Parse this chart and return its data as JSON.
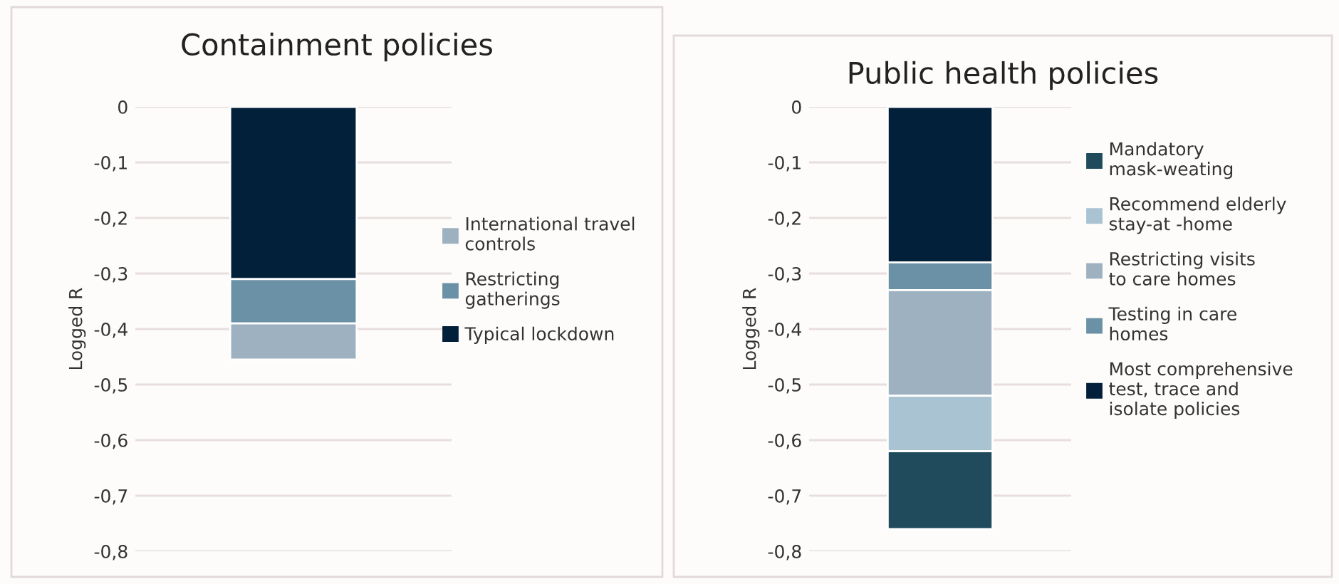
{
  "chart_data": [
    {
      "type": "bar",
      "stacked": true,
      "title": "Containment policies",
      "ylabel": "Logged R",
      "categories": [
        null
      ],
      "series": [
        {
          "name": "Typical lockdown",
          "color": "#03203a",
          "values": [
            -0.31
          ]
        },
        {
          "name": "Restricting gatherings",
          "color": "#6a91a5",
          "values": [
            -0.08
          ]
        },
        {
          "name": "International travel controls",
          "color": "#9db1c0",
          "values": [
            -0.065
          ]
        }
      ],
      "ylim": [
        -0.8,
        0
      ],
      "yticks": [
        0,
        {
          "value": -0.1,
          "label": "-0,1"
        },
        {
          "value": -0.2,
          "label": "-0,2"
        },
        {
          "value": -0.3,
          "label": "-0,3"
        },
        {
          "value": -0.4,
          "label": "-0,4"
        },
        {
          "value": -0.5,
          "label": "-0,5"
        },
        {
          "value": -0.6,
          "label": "-0,6"
        },
        {
          "value": -0.7,
          "label": "-0,7"
        },
        {
          "value": -0.8,
          "label": "-0,8"
        }
      ],
      "grid": "y",
      "legend": "right",
      "tick_labels": "y"
    },
    {
      "type": "bar",
      "stacked": true,
      "title": "Public health policies",
      "ylabel": "Logged R",
      "categories": [
        null
      ],
      "series": [
        {
          "name": "Most comprehensive test, trace and isolate policies",
          "color": "#03203a",
          "values": [
            -0.28
          ]
        },
        {
          "name": "Testing in care homes",
          "color": "#6a91a5",
          "values": [
            -0.05
          ]
        },
        {
          "name": "Restricting visits to care homes",
          "color": "#9db1c0",
          "values": [
            -0.19
          ]
        },
        {
          "name": "Recommend elderly stay-at -home",
          "color": "#a9c3d3",
          "values": [
            -0.1
          ]
        },
        {
          "name": "Mandatory mask-weating",
          "color": "#1f4b5c",
          "values": [
            -0.14
          ]
        }
      ],
      "ylim": [
        -0.8,
        0
      ],
      "yticks": [
        0,
        {
          "value": -0.1,
          "label": "-0,1"
        },
        {
          "value": -0.2,
          "label": "-0,2"
        },
        {
          "value": -0.3,
          "label": "-0,3"
        },
        {
          "value": -0.4,
          "label": "-0,4"
        },
        {
          "value": -0.5,
          "label": "-0,5"
        },
        {
          "value": -0.6,
          "label": "-0,6"
        },
        {
          "value": -0.7,
          "label": "-0,7"
        },
        {
          "value": -0.8,
          "label": "-0,8"
        }
      ],
      "grid": "y",
      "legend": "right",
      "tick_labels": "y"
    }
  ]
}
